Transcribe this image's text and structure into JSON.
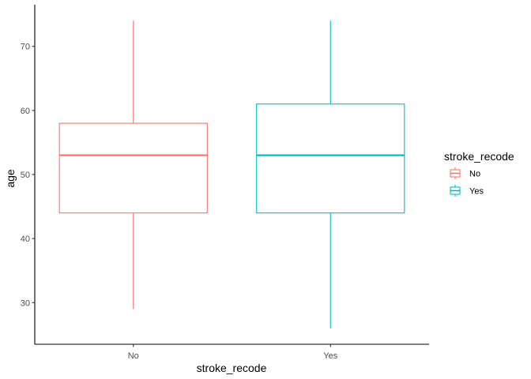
{
  "chart_data": {
    "type": "boxplot",
    "title": "",
    "xlabel": "stroke_recode",
    "ylabel": "age",
    "ylim": [
      23.5,
      76.5
    ],
    "yticks": [
      30,
      40,
      50,
      60,
      70
    ],
    "categories": [
      "No",
      "Yes"
    ],
    "series": [
      {
        "name": "No",
        "color": "#F8766D",
        "min": 29,
        "q1": 44,
        "median": 53,
        "q3": 58,
        "max": 74
      },
      {
        "name": "Yes",
        "color": "#00BFC4",
        "min": 26,
        "q1": 44,
        "median": 53,
        "q3": 61,
        "max": 74
      }
    ],
    "legend": {
      "title": "stroke_recode",
      "placement": "right",
      "entries": [
        "No",
        "Yes"
      ]
    },
    "grid": false
  }
}
